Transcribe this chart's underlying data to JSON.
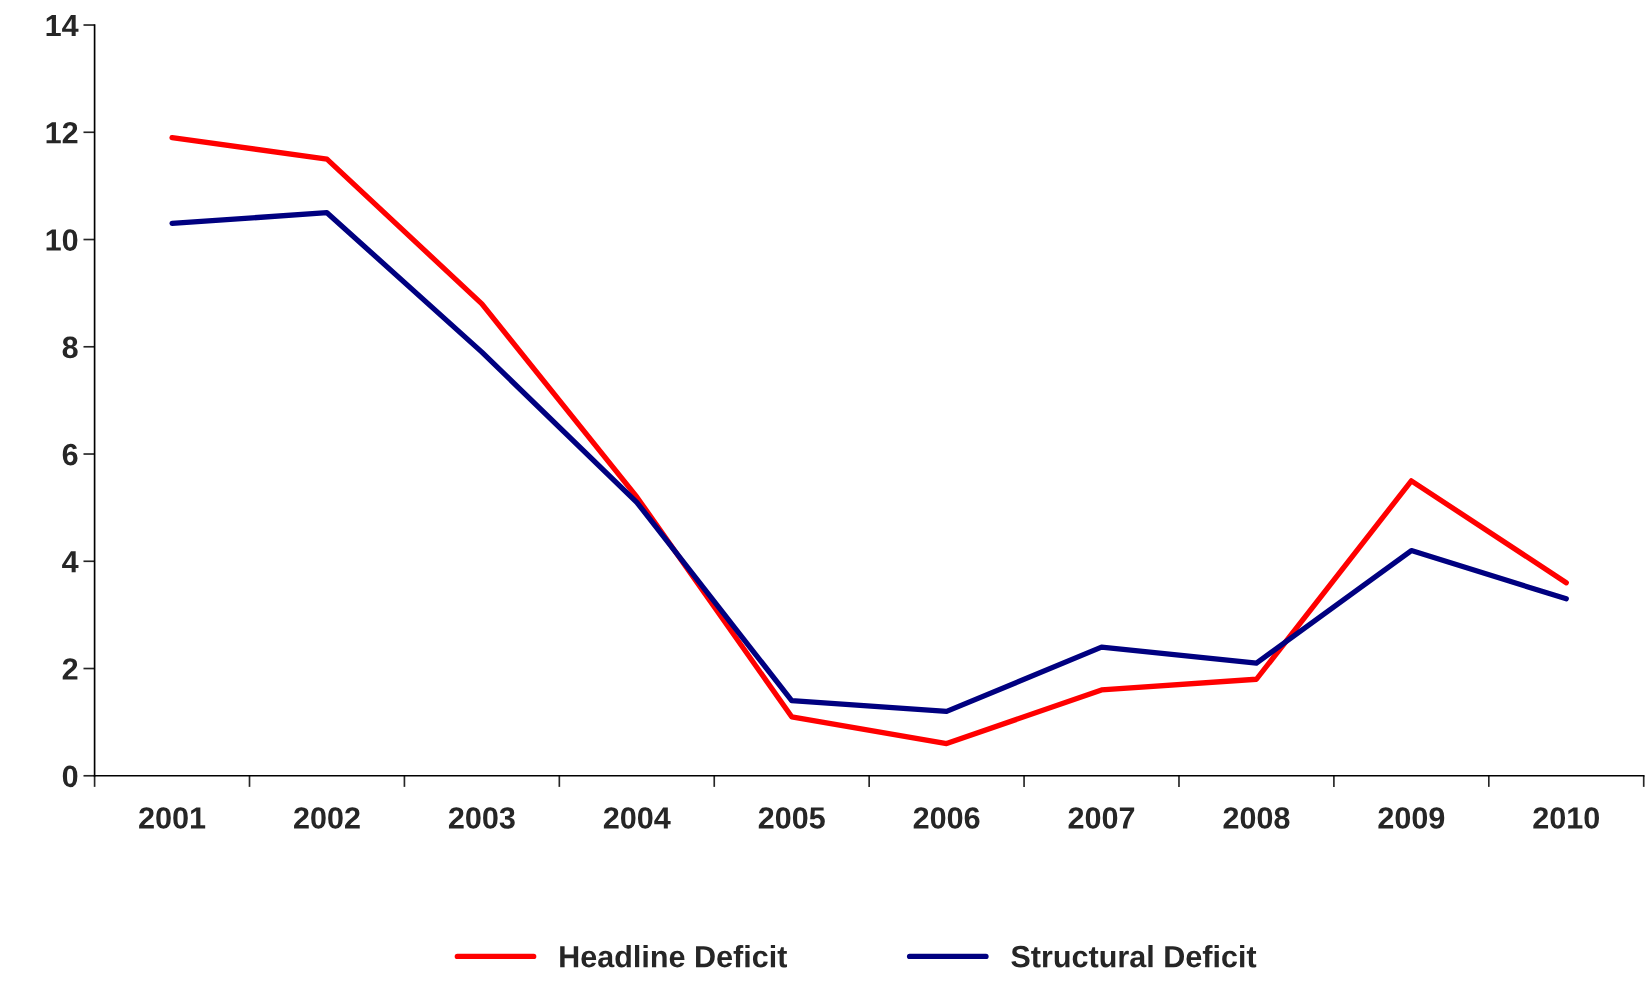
{
  "chart_data": {
    "type": "line",
    "categories": [
      "2001",
      "2002",
      "2003",
      "2004",
      "2005",
      "2006",
      "2007",
      "2008",
      "2009",
      "2010"
    ],
    "series": [
      {
        "name": "Headline Deficit",
        "color": "#ff0000",
        "values": [
          11.9,
          11.5,
          8.8,
          5.2,
          1.1,
          0.6,
          1.6,
          1.8,
          5.5,
          3.6
        ]
      },
      {
        "name": "Structural Deficit",
        "color": "#000080",
        "values": [
          10.3,
          10.5,
          7.9,
          5.1,
          1.4,
          1.2,
          2.4,
          2.1,
          4.2,
          3.3
        ]
      }
    ],
    "ylim": [
      0,
      14
    ],
    "yticks": [
      0,
      2,
      4,
      6,
      8,
      10,
      12,
      14
    ],
    "grid": false,
    "legend": "bottom",
    "marker": "none",
    "line_style": "solid"
  }
}
